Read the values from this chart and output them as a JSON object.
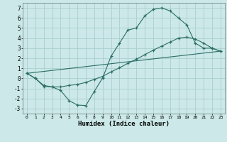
{
  "xlabel": "Humidex (Indice chaleur)",
  "background_color": "#cce8e8",
  "grid_color": "#aacece",
  "line_color": "#2a6e64",
  "xlim": [
    -0.5,
    23.5
  ],
  "ylim": [
    -3.5,
    7.5
  ],
  "xticks": [
    0,
    1,
    2,
    3,
    4,
    5,
    6,
    7,
    8,
    9,
    10,
    11,
    12,
    13,
    14,
    15,
    16,
    17,
    18,
    19,
    20,
    21,
    22,
    23
  ],
  "yticks": [
    -3,
    -2,
    -1,
    0,
    1,
    2,
    3,
    4,
    5,
    6,
    7
  ],
  "line1_x": [
    0,
    1,
    2,
    3,
    4,
    5,
    6,
    7,
    8,
    9,
    10,
    11,
    12,
    13,
    14,
    15,
    16,
    17,
    18,
    19,
    20,
    21,
    22,
    23
  ],
  "line1_y": [
    0.5,
    0.0,
    -0.8,
    -0.85,
    -1.2,
    -2.2,
    -2.65,
    -2.7,
    -1.3,
    0.05,
    2.2,
    3.5,
    4.8,
    5.0,
    6.2,
    6.85,
    7.0,
    6.7,
    6.0,
    5.3,
    3.5,
    3.0,
    3.0,
    2.7
  ],
  "line2_x": [
    0,
    1,
    2,
    3,
    4,
    5,
    6,
    7,
    8,
    9,
    10,
    11,
    12,
    13,
    14,
    15,
    16,
    17,
    18,
    19,
    20,
    21,
    22,
    23
  ],
  "line2_y": [
    0.5,
    0.0,
    -0.7,
    -0.85,
    -0.85,
    -0.7,
    -0.6,
    -0.4,
    -0.1,
    0.2,
    0.65,
    1.05,
    1.5,
    1.9,
    2.35,
    2.8,
    3.2,
    3.6,
    4.0,
    4.1,
    3.9,
    3.5,
    3.0,
    2.7
  ],
  "line3_x": [
    0,
    23
  ],
  "line3_y": [
    0.5,
    2.7
  ]
}
